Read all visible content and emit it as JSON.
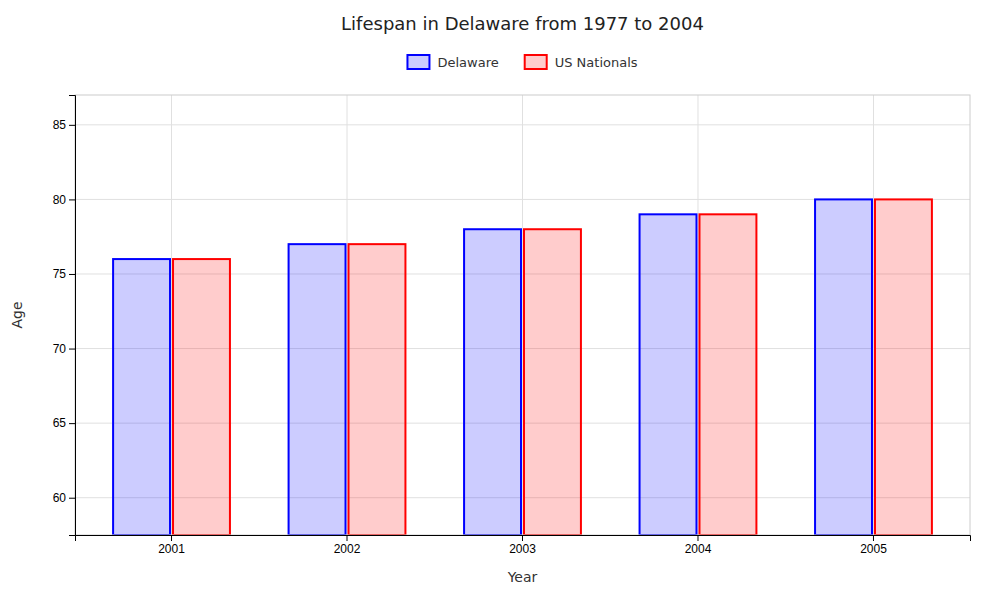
{
  "chart_data": {
    "type": "bar",
    "title": "Lifespan in Delaware from 1977 to 2004",
    "xlabel": "Year",
    "ylabel": "Age",
    "categories": [
      "2001",
      "2002",
      "2003",
      "2004",
      "2005"
    ],
    "series": [
      {
        "name": "Delaware",
        "color": "#0000ff",
        "values": [
          76,
          77,
          78,
          79,
          80
        ]
      },
      {
        "name": "US Nationals",
        "color": "#ff0000",
        "values": [
          76,
          77,
          78,
          79,
          80
        ]
      }
    ],
    "ylim": [
      57.5,
      87
    ],
    "yticks": [
      60,
      65,
      70,
      75,
      80,
      85
    ],
    "grid": true,
    "legend": "top"
  }
}
